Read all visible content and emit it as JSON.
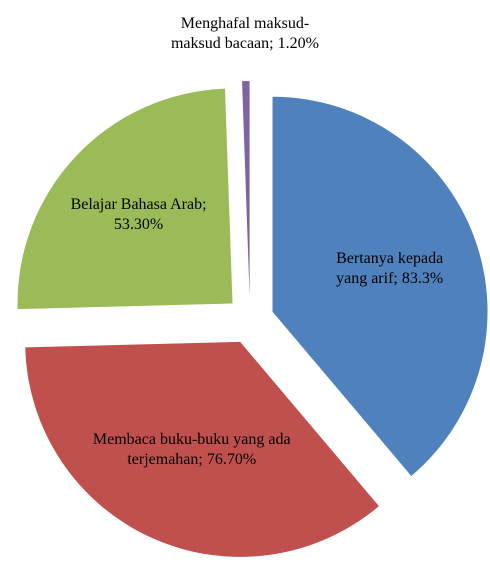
{
  "chart_data": {
    "type": "pie",
    "labels": [
      "Bertanya kepada yang arif; 83.3%",
      "Membaca buku-buku yang ada terjemahan; 76.70%",
      "Belajar Bahasa Arab; 53.30%",
      "Menghafal maksud-maksud bacaan; 1.20%"
    ],
    "values": [
      83.3,
      76.7,
      53.3,
      1.2
    ],
    "colors": [
      "#4f81bd",
      "#c0504d",
      "#9bbb59",
      "#8064a2"
    ]
  }
}
